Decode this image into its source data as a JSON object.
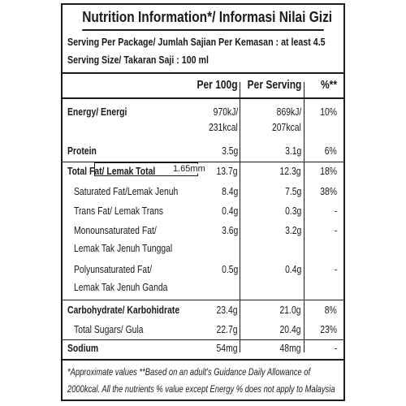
{
  "title": "Nutrition Information*/ Informasi Nilai Gizi",
  "serving_per_package": "Serving Per Package/ Jumlah Sajian Per Kemasan : at least 4.5",
  "serving_size": "Serving Size/ Takaran Saji : 100 ml",
  "columns": {
    "per100": "Per 100g",
    "perServing": "Per Serving",
    "pct": "%**"
  },
  "rows": [
    {
      "label": "Energy/ Energi",
      "per100": "970kJ/",
      "per100_2": "231kcal",
      "perServing": "869kJ/",
      "perServing_2": "207kcal",
      "pct": "10%"
    },
    {
      "label": "Protein",
      "per100": "3.5g",
      "perServing": "3.1g",
      "pct": "6%"
    },
    {
      "label": "Total Fat/ Lemak Total",
      "per100": "13.7g",
      "perServing": "12.3g",
      "pct": "18%"
    },
    {
      "label": "Saturated Fat/Lemak Jenuh",
      "per100": "8.4g",
      "perServing": "7.5g",
      "pct": "38%"
    },
    {
      "label": "Trans Fat/ Lemak Trans",
      "per100": "0.4g",
      "perServing": "0.3g",
      "pct": "-"
    },
    {
      "label": "Monounsaturated Fat/",
      "label_2": "Lemak Tak Jenuh Tunggal",
      "per100": "3.6g",
      "perServing": "3.2g",
      "pct": "-"
    },
    {
      "label": "Polyunsaturated Fat/",
      "label_2": "Lemak Tak Jenuh Ganda",
      "per100": "0.5g",
      "perServing": "0.4g",
      "pct": "-"
    },
    {
      "label": "Carbohydrate/ Karbohidrate",
      "per100": "23.4g",
      "perServing": "21.0g",
      "pct": "8%"
    },
    {
      "label": "Total Sugars/ Gula",
      "per100": "22.7g",
      "perServing": "20.4g",
      "pct": "23%"
    },
    {
      "label": "Sodium",
      "per100": "54mg",
      "perServing": "48mg",
      "pct": "-"
    }
  ],
  "measure_label": "1.65mm",
  "footnote_1": "*Approximate values  **Based on an adult's Guidance Daily Allowance of",
  "footnote_2": "2000kcal. All the nutrients % value except Energy % does not apply to Malaysia"
}
